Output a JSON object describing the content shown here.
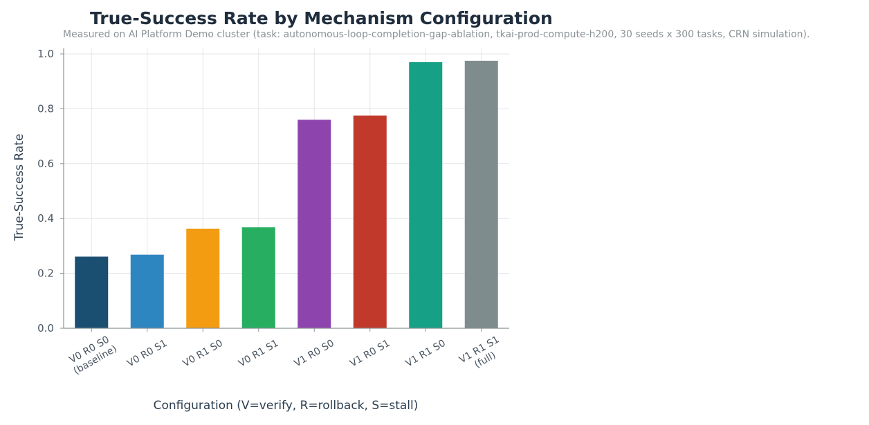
{
  "chart_data": {
    "type": "bar",
    "title": "True-Success Rate by Mechanism Configuration",
    "subtitle": "Measured on AI Platform Demo cluster (task: autonomous-loop-completion-gap-ablation, tkai-prod-compute-h200, 30 seeds x 300 tasks, CRN simulation).",
    "xlabel": "Configuration (V=verify, R=rollback, S=stall)",
    "ylabel": "True-Success Rate",
    "ylim": [
      0,
      1.0
    ],
    "yticks": [
      "0.0",
      "0.2",
      "0.4",
      "0.6",
      "0.8",
      "1.0"
    ],
    "grid": true,
    "categories": [
      [
        "V0 R0 S0",
        "(baseline)"
      ],
      [
        "V0 R0 S1"
      ],
      [
        "V0 R1 S0"
      ],
      [
        "V0 R1 S1"
      ],
      [
        "V1 R0 S0"
      ],
      [
        "V1 R0 S1"
      ],
      [
        "V1 R1 S0"
      ],
      [
        "V1 R1 S1",
        "(full)"
      ]
    ],
    "values": [
      0.261,
      0.268,
      0.363,
      0.368,
      0.76,
      0.775,
      0.97,
      0.975
    ],
    "colors": [
      "#1b4f72",
      "#2e86c1",
      "#f39c12",
      "#27ae60",
      "#8e44ad",
      "#c0392b",
      "#16a085",
      "#7f8c8d"
    ]
  }
}
